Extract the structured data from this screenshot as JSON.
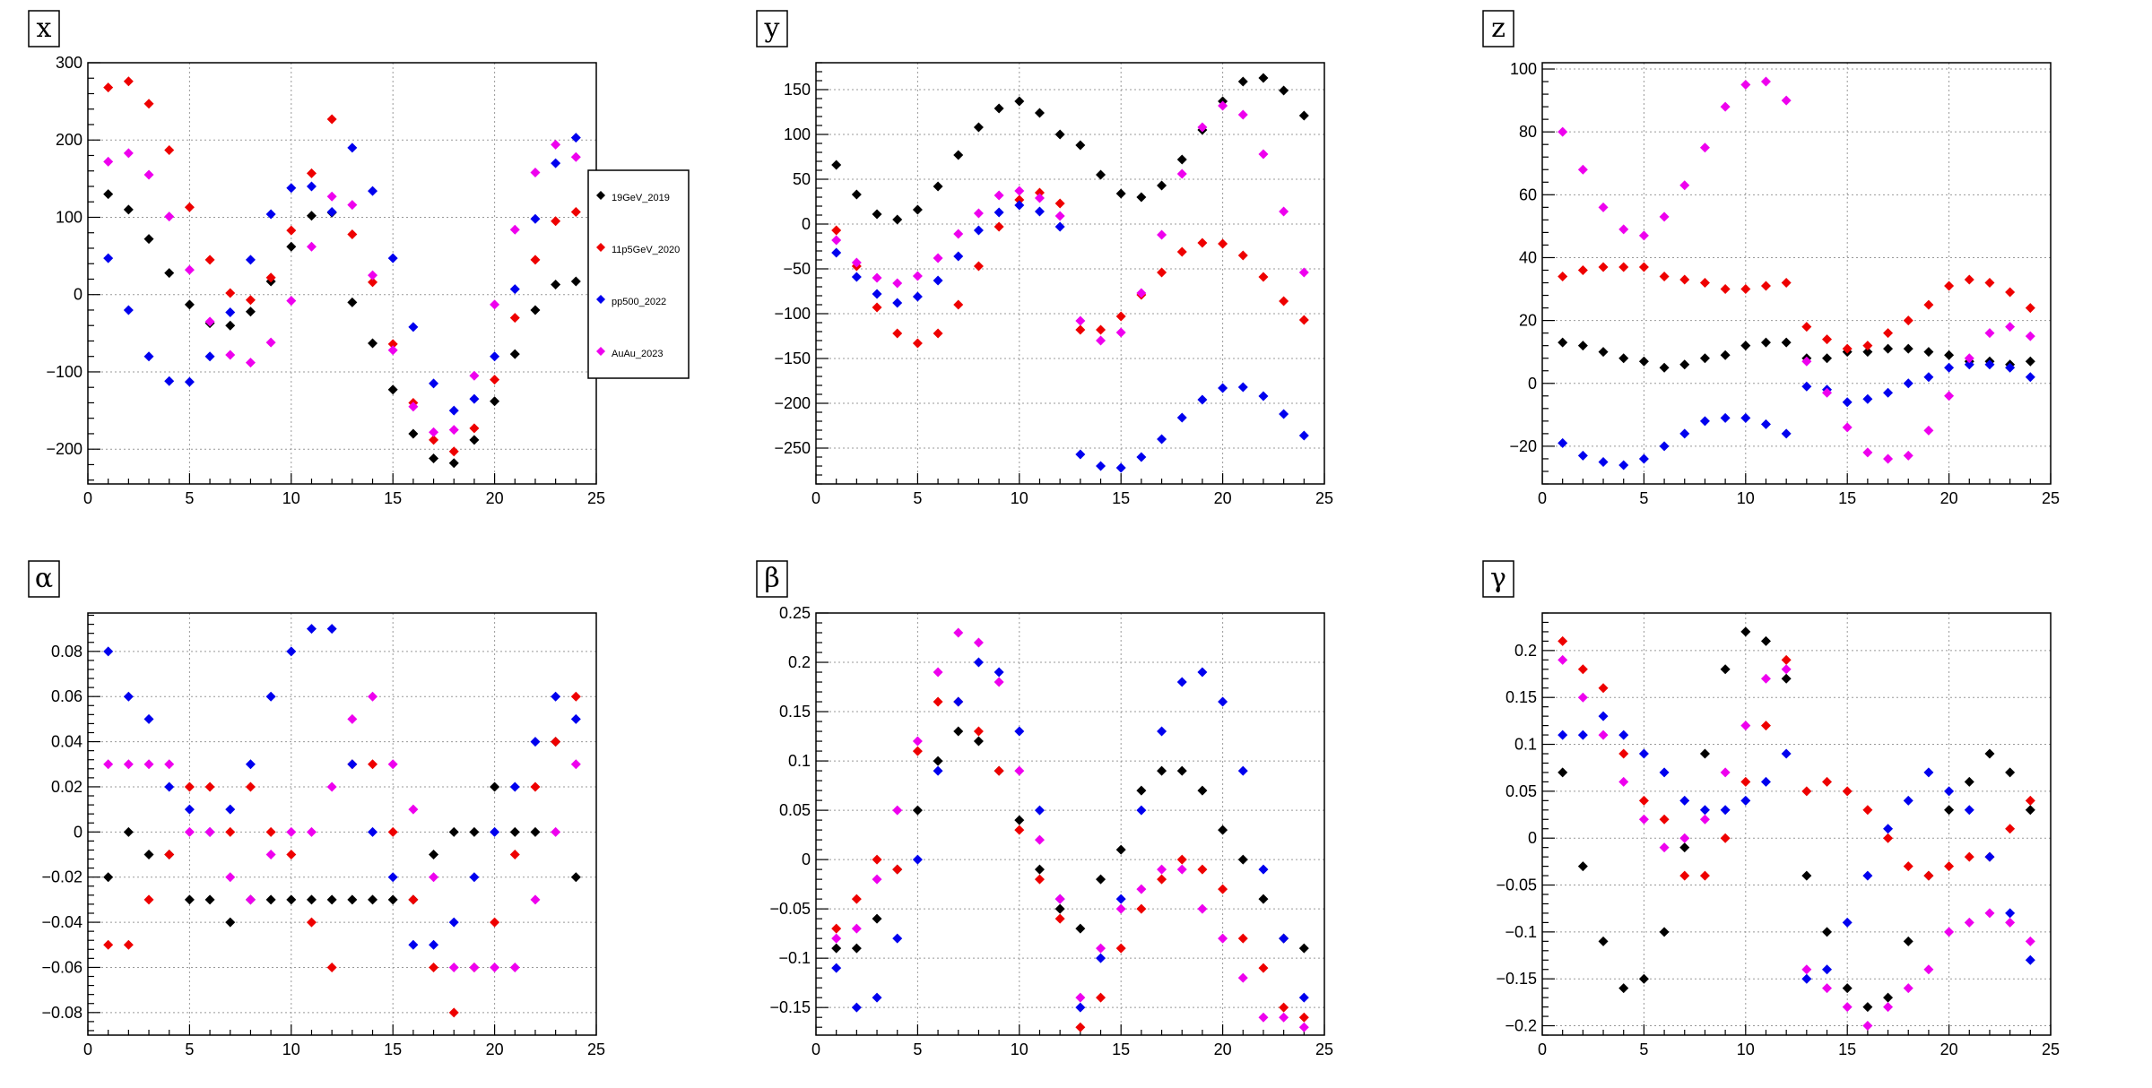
{
  "colors": {
    "19GeV_2019": "#000000",
    "11p5GeV_2020": "#ee0000",
    "pp500_2022": "#0000ee",
    "AuAu_2023": "#ee00ee"
  },
  "legend": {
    "entries": [
      "19GeV_2019",
      "11p5GeV_2020",
      "pp500_2022",
      "AuAu_2023"
    ]
  },
  "chart_data": [
    {
      "type": "scatter",
      "title": "x",
      "xlim": [
        0,
        25
      ],
      "ylim": [
        -245,
        300
      ],
      "xticks": [
        0,
        5,
        10,
        15,
        20,
        25
      ],
      "yticks": [
        -200,
        -100,
        0,
        100,
        200,
        300
      ],
      "grid": true,
      "x": [
        1,
        2,
        3,
        4,
        5,
        6,
        7,
        8,
        9,
        10,
        11,
        12,
        13,
        14,
        15,
        16,
        17,
        18,
        19,
        20,
        21,
        22,
        23,
        24
      ],
      "series": [
        {
          "name": "19GeV_2019",
          "values": [
            130,
            110,
            72,
            28,
            -13,
            -37,
            -40,
            -22,
            17,
            62,
            102,
            106,
            -10,
            -63,
            -123,
            -180,
            -212,
            -218,
            -188,
            -138,
            -77,
            -20,
            13,
            17
          ]
        },
        {
          "name": "11p5GeV_2020",
          "values": [
            268,
            276,
            247,
            187,
            113,
            45,
            2,
            -7,
            22,
            83,
            157,
            227,
            78,
            16,
            -64,
            -140,
            -188,
            -203,
            -173,
            -110,
            -30,
            45,
            95,
            107
          ]
        },
        {
          "name": "pp500_2022",
          "values": [
            47,
            -20,
            -80,
            -112,
            -113,
            -80,
            -23,
            45,
            104,
            138,
            140,
            107,
            190,
            134,
            47,
            -42,
            -115,
            -150,
            -135,
            -80,
            7,
            98,
            170,
            203
          ]
        },
        {
          "name": "AuAu_2023",
          "values": [
            172,
            183,
            155,
            101,
            32,
            -35,
            -78,
            -88,
            -62,
            -8,
            62,
            127,
            116,
            25,
            -72,
            -145,
            -178,
            -175,
            -105,
            -13,
            84,
            158,
            194,
            178
          ]
        }
      ]
    },
    {
      "type": "scatter",
      "title": "y",
      "xlim": [
        0,
        25
      ],
      "ylim": [
        -290,
        180
      ],
      "xticks": [
        0,
        5,
        10,
        15,
        20,
        25
      ],
      "yticks": [
        -250,
        -200,
        -150,
        -100,
        -50,
        0,
        50,
        100,
        150
      ],
      "grid": true,
      "x": [
        1,
        2,
        3,
        4,
        5,
        6,
        7,
        8,
        9,
        10,
        11,
        12,
        13,
        14,
        15,
        16,
        17,
        18,
        19,
        20,
        21,
        22,
        23,
        24
      ],
      "series": [
        {
          "name": "19GeV_2019",
          "values": [
            66,
            33,
            11,
            5,
            16,
            42,
            77,
            108,
            129,
            137,
            124,
            100,
            88,
            55,
            34,
            30,
            43,
            72,
            105,
            137,
            159,
            163,
            149,
            121
          ]
        },
        {
          "name": "11p5GeV_2020",
          "values": [
            -7,
            -47,
            -93,
            -122,
            -133,
            -122,
            -90,
            -47,
            -3,
            27,
            35,
            23,
            -118,
            -118,
            -103,
            -79,
            -54,
            -31,
            -21,
            -22,
            -35,
            -59,
            -86,
            -107
          ]
        },
        {
          "name": "pp500_2022",
          "values": [
            -32,
            -59,
            -78,
            -88,
            -81,
            -63,
            -36,
            -7,
            13,
            21,
            14,
            -3,
            -257,
            -270,
            -272,
            -260,
            -240,
            -216,
            -196,
            -183,
            -182,
            -192,
            -212,
            -236
          ]
        },
        {
          "name": "AuAu_2023",
          "values": [
            -18,
            -43,
            -60,
            -66,
            -58,
            -38,
            -11,
            12,
            32,
            37,
            29,
            9,
            -108,
            -130,
            -121,
            -77,
            -12,
            56,
            108,
            132,
            122,
            78,
            14,
            -54
          ]
        }
      ]
    },
    {
      "type": "scatter",
      "title": "z",
      "xlim": [
        0,
        25
      ],
      "ylim": [
        -32,
        102
      ],
      "xticks": [
        0,
        5,
        10,
        15,
        20,
        25
      ],
      "yticks": [
        -20,
        0,
        20,
        40,
        60,
        80,
        100
      ],
      "grid": true,
      "x": [
        1,
        2,
        3,
        4,
        5,
        6,
        7,
        8,
        9,
        10,
        11,
        12,
        13,
        14,
        15,
        16,
        17,
        18,
        19,
        20,
        21,
        22,
        23,
        24
      ],
      "series": [
        {
          "name": "19GeV_2019",
          "values": [
            13,
            12,
            10,
            8,
            7,
            5,
            6,
            8,
            9,
            12,
            13,
            13,
            8,
            8,
            10,
            10,
            11,
            11,
            10,
            9,
            7,
            7,
            6,
            7
          ]
        },
        {
          "name": "11p5GeV_2020",
          "values": [
            34,
            36,
            37,
            37,
            37,
            34,
            33,
            32,
            30,
            30,
            31,
            32,
            18,
            14,
            11,
            12,
            16,
            20,
            25,
            31,
            33,
            32,
            29,
            24
          ]
        },
        {
          "name": "pp500_2022",
          "values": [
            -19,
            -23,
            -25,
            -26,
            -24,
            -20,
            -16,
            -12,
            -11,
            -11,
            -13,
            -16,
            -1,
            -2,
            -6,
            -5,
            -3,
            0,
            2,
            5,
            6,
            6,
            5,
            2
          ]
        },
        {
          "name": "AuAu_2023",
          "values": [
            80,
            68,
            56,
            49,
            47,
            53,
            63,
            75,
            88,
            95,
            96,
            90,
            7,
            -3,
            -14,
            -22,
            -24,
            -23,
            -15,
            -4,
            8,
            16,
            18,
            15
          ]
        }
      ]
    },
    {
      "type": "scatter",
      "title": "α",
      "xlim": [
        0,
        25
      ],
      "ylim": [
        -0.09,
        0.097
      ],
      "xticks": [
        0,
        5,
        10,
        15,
        20,
        25
      ],
      "yticks": [
        -0.08,
        -0.06,
        -0.04,
        -0.02,
        0,
        0.02,
        0.04,
        0.06,
        0.08
      ],
      "grid": true,
      "x": [
        1,
        2,
        3,
        4,
        5,
        6,
        7,
        8,
        9,
        10,
        11,
        12,
        13,
        14,
        15,
        16,
        17,
        18,
        19,
        20,
        21,
        22,
        23,
        24
      ],
      "series": [
        {
          "name": "19GeV_2019",
          "values": [
            -0.02,
            0,
            -0.01,
            -0.01,
            -0.03,
            -0.03,
            -0.04,
            -0.03,
            -0.03,
            -0.03,
            -0.03,
            -0.03,
            -0.03,
            -0.03,
            -0.03,
            -0.03,
            -0.01,
            0,
            0,
            0.02,
            0,
            0,
            0.04,
            -0.02
          ]
        },
        {
          "name": "11p5GeV_2020",
          "values": [
            -0.05,
            -0.05,
            -0.03,
            -0.01,
            0.02,
            0.02,
            0,
            0.02,
            0,
            -0.01,
            -0.04,
            -0.06,
            0.03,
            0.03,
            0,
            -0.03,
            -0.06,
            -0.08,
            -0.06,
            -0.04,
            -0.01,
            0.02,
            0.04,
            0.06
          ]
        },
        {
          "name": "pp500_2022",
          "values": [
            0.08,
            0.06,
            0.05,
            0.02,
            0.01,
            0,
            0.01,
            0.03,
            0.06,
            0.08,
            0.09,
            0.09,
            0.03,
            0,
            -0.02,
            -0.05,
            -0.05,
            -0.04,
            -0.02,
            0,
            0.02,
            0.04,
            0.06,
            0.05
          ]
        },
        {
          "name": "AuAu_2023",
          "values": [
            0.03,
            0.03,
            0.03,
            0.03,
            0,
            0,
            -0.02,
            -0.03,
            -0.01,
            0,
            0,
            0.02,
            0.05,
            0.06,
            0.03,
            0.01,
            -0.02,
            -0.06,
            -0.06,
            -0.06,
            -0.06,
            -0.03,
            0,
            0.03
          ]
        }
      ]
    },
    {
      "type": "scatter",
      "title": "β",
      "xlim": [
        0,
        25
      ],
      "ylim": [
        -0.178,
        0.25
      ],
      "xticks": [
        0,
        5,
        10,
        15,
        20,
        25
      ],
      "yticks": [
        -0.15,
        -0.1,
        -0.05,
        0,
        0.05,
        0.1,
        0.15,
        0.2,
        0.25
      ],
      "grid": true,
      "x": [
        1,
        2,
        3,
        4,
        5,
        6,
        7,
        8,
        9,
        10,
        11,
        12,
        13,
        14,
        15,
        16,
        17,
        18,
        19,
        20,
        21,
        22,
        23,
        24
      ],
      "series": [
        {
          "name": "19GeV_2019",
          "values": [
            -0.09,
            -0.09,
            -0.06,
            -0.01,
            0.05,
            0.1,
            0.13,
            0.12,
            0.09,
            0.04,
            -0.01,
            -0.05,
            -0.07,
            -0.02,
            0.01,
            0.07,
            0.09,
            0.09,
            0.07,
            0.03,
            0,
            -0.04,
            -0.08,
            -0.09
          ]
        },
        {
          "name": "11p5GeV_2020",
          "values": [
            -0.07,
            -0.04,
            0,
            -0.01,
            0.11,
            0.16,
            0.16,
            0.13,
            0.09,
            0.03,
            -0.02,
            -0.06,
            -0.17,
            -0.14,
            -0.09,
            -0.05,
            -0.02,
            0,
            -0.01,
            -0.03,
            -0.08,
            -0.11,
            -0.15,
            -0.16
          ]
        },
        {
          "name": "pp500_2022",
          "values": [
            -0.11,
            -0.15,
            -0.14,
            -0.08,
            0,
            0.09,
            0.16,
            0.2,
            0.19,
            0.13,
            0.05,
            -0.04,
            -0.15,
            -0.1,
            -0.04,
            0.05,
            0.13,
            0.18,
            0.19,
            0.16,
            0.09,
            -0.01,
            -0.08,
            -0.14
          ]
        },
        {
          "name": "AuAu_2023",
          "values": [
            -0.08,
            -0.07,
            -0.02,
            0.05,
            0.12,
            0.19,
            0.23,
            0.22,
            0.18,
            0.09,
            0.02,
            -0.04,
            -0.14,
            -0.09,
            -0.05,
            -0.03,
            -0.01,
            -0.01,
            -0.05,
            -0.08,
            -0.12,
            -0.16,
            -0.16,
            -0.17
          ]
        }
      ]
    },
    {
      "type": "scatter",
      "title": "γ",
      "xlim": [
        0,
        25
      ],
      "ylim": [
        -0.21,
        0.24
      ],
      "xticks": [
        0,
        5,
        10,
        15,
        20,
        25
      ],
      "yticks": [
        -0.2,
        -0.15,
        -0.1,
        -0.05,
        0,
        0.05,
        0.1,
        0.15,
        0.2
      ],
      "grid": true,
      "x": [
        1,
        2,
        3,
        4,
        5,
        6,
        7,
        8,
        9,
        10,
        11,
        12,
        13,
        14,
        15,
        16,
        17,
        18,
        19,
        20,
        21,
        22,
        23,
        24
      ],
      "series": [
        {
          "name": "19GeV_2019",
          "values": [
            0.07,
            -0.03,
            -0.11,
            -0.16,
            -0.15,
            -0.1,
            -0.01,
            0.09,
            0.18,
            0.22,
            0.21,
            0.17,
            -0.04,
            -0.1,
            -0.16,
            -0.18,
            -0.17,
            -0.11,
            -0.04,
            0.03,
            0.06,
            0.09,
            0.07,
            0.03
          ]
        },
        {
          "name": "11p5GeV_2020",
          "values": [
            0.21,
            0.18,
            0.16,
            0.09,
            0.04,
            0.02,
            -0.04,
            -0.04,
            0,
            0.06,
            0.12,
            0.19,
            0.05,
            0.06,
            0.05,
            0.03,
            0,
            -0.03,
            -0.04,
            -0.03,
            -0.02,
            -0.02,
            0.01,
            0.04
          ]
        },
        {
          "name": "pp500_2022",
          "values": [
            0.11,
            0.11,
            0.13,
            0.11,
            0.09,
            0.07,
            0.04,
            0.03,
            0.03,
            0.04,
            0.06,
            0.09,
            -0.15,
            -0.14,
            -0.09,
            -0.04,
            0.01,
            0.04,
            0.07,
            0.05,
            0.03,
            -0.02,
            -0.08,
            -0.13
          ]
        },
        {
          "name": "AuAu_2023",
          "values": [
            0.19,
            0.15,
            0.11,
            0.06,
            0.02,
            -0.01,
            0,
            0.02,
            0.07,
            0.12,
            0.17,
            0.18,
            -0.14,
            -0.16,
            -0.18,
            -0.2,
            -0.18,
            -0.16,
            -0.14,
            -0.1,
            -0.09,
            -0.08,
            -0.09,
            -0.11
          ]
        }
      ]
    }
  ]
}
